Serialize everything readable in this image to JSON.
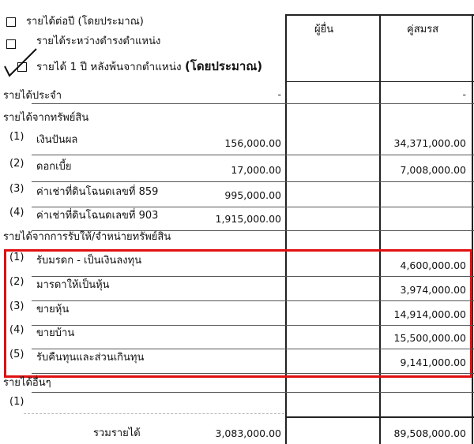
{
  "options": [
    {
      "label": "รายได้ต่อปี (โดยประมาณ)",
      "checked": false
    },
    {
      "label": "รายได้ระหว่างดำรงตำแหน่ง",
      "checked": false
    },
    {
      "label": "รายได้ 1 ปี หลังพ้นจากตำแหน่ง",
      "label_bold": "(โดยประมาณ)",
      "checked": true
    }
  ],
  "columns": [
    "ผู้ยื่น",
    "คู่สมรส"
  ],
  "regular_income": {
    "label": "รายได้ประจำ",
    "filer": "-",
    "spouse": "-"
  },
  "asset_income": {
    "label": "รายได้จากทรัพย์สิน",
    "items": [
      {
        "index": "(1)",
        "label": "เงินปันผล",
        "filer": "156,000.00",
        "spouse": "34,371,000.00"
      },
      {
        "index": "(2)",
        "label": "ดอกเบี้ย",
        "filer": "17,000.00",
        "spouse": "7,008,000.00"
      },
      {
        "index": "(3)",
        "label": "ค่าเช่าที่ดินโฉนดเลขที่ 859",
        "filer": "995,000.00",
        "spouse": ""
      },
      {
        "index": "(4)",
        "label": "ค่าเช่าที่ดินโฉนดเลขที่ 903",
        "filer": "1,915,000.00",
        "spouse": ""
      }
    ]
  },
  "disposal_income": {
    "label": "รายได้จากการรับให้/จำหน่ายทรัพย์สิน",
    "highlight_color": "#e01010",
    "items": [
      {
        "index": "(1)",
        "label": "รับมรดก - เป็นเงินลงทุน",
        "filer": "",
        "spouse": "4,600,000.00"
      },
      {
        "index": "(2)",
        "label": "มารดาให้เป็นหุ้น",
        "filer": "",
        "spouse": "3,974,000.00"
      },
      {
        "index": "(3)",
        "label": "ขายหุ้น",
        "filer": "",
        "spouse": "14,914,000.00"
      },
      {
        "index": "(4)",
        "label": "ขายบ้าน",
        "filer": "",
        "spouse": "15,500,000.00"
      },
      {
        "index": "(5)",
        "label": "รับคืนทุนและส่วนเกินทุน",
        "filer": "",
        "spouse": "9,141,000.00"
      }
    ]
  },
  "other_income": {
    "label": "รายได้อื่นๆ",
    "items": [
      {
        "index": "(1)",
        "label": "",
        "filer": "",
        "spouse": ""
      }
    ]
  },
  "total": {
    "label": "รวมรายได้",
    "filer": "3,083,000.00",
    "spouse": "89,508,000.00"
  }
}
